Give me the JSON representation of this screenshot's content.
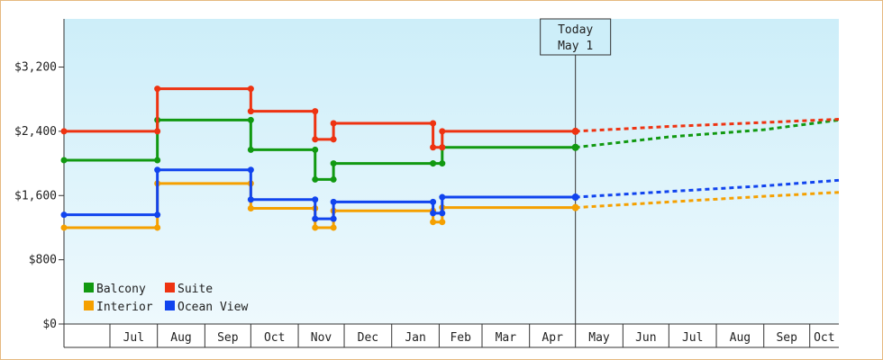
{
  "chart_data": {
    "type": "line",
    "title": "",
    "xlabel": "",
    "ylabel": "",
    "y_ticks": [
      "$0",
      "$800",
      "$1,600",
      "$2,400",
      "$3,200"
    ],
    "y_tick_values": [
      0,
      800,
      1600,
      2400,
      3200
    ],
    "ylim": [
      0,
      3800
    ],
    "x_start": "2025-06-01",
    "x_end": "2026-10-20",
    "months": [
      {
        "label": "Jul",
        "start": "2025-07-01"
      },
      {
        "label": "Aug",
        "start": "2025-08-01"
      },
      {
        "label": "Sep",
        "start": "2025-09-01"
      },
      {
        "label": "Oct",
        "start": "2025-10-01"
      },
      {
        "label": "Nov",
        "start": "2025-11-01"
      },
      {
        "label": "Dec",
        "start": "2025-12-01"
      },
      {
        "label": "Jan",
        "start": "2026-01-01"
      },
      {
        "label": "Feb",
        "start": "2026-02-01"
      },
      {
        "label": "Mar",
        "start": "2026-03-01"
      },
      {
        "label": "Apr",
        "start": "2026-04-01"
      },
      {
        "label": "May",
        "start": "2026-05-01"
      },
      {
        "label": "Jun",
        "start": "2026-06-01"
      },
      {
        "label": "Jul",
        "start": "2026-07-01"
      },
      {
        "label": "Aug",
        "start": "2026-08-01"
      },
      {
        "label": "Sep",
        "start": "2026-09-01"
      },
      {
        "label": "Oct",
        "start": "2026-10-01"
      }
    ],
    "today": {
      "line1": "Today",
      "line2": "May 1",
      "date": "2026-05-01"
    },
    "grid": false,
    "legend_position": "bottom-left",
    "background": [
      "#cdeef9",
      "#eef9fd"
    ],
    "series": [
      {
        "name": "Balcony",
        "color": "#119911",
        "points": [
          [
            "2025-06-01",
            2040
          ],
          [
            "2025-08-01",
            2040
          ],
          [
            "2025-08-01",
            2540
          ],
          [
            "2025-10-01",
            2540
          ],
          [
            "2025-10-01",
            2170
          ],
          [
            "2025-11-12",
            2170
          ],
          [
            "2025-11-12",
            1800
          ],
          [
            "2025-11-24",
            1800
          ],
          [
            "2025-11-24",
            2000
          ],
          [
            "2026-01-28",
            2000
          ],
          [
            "2026-01-28",
            2000
          ],
          [
            "2026-02-03",
            2000
          ],
          [
            "2026-02-03",
            2200
          ],
          [
            "2026-05-01",
            2200
          ]
        ],
        "projection": [
          [
            "2026-05-01",
            2200
          ],
          [
            "2026-07-01",
            2330
          ],
          [
            "2026-09-01",
            2420
          ],
          [
            "2026-10-20",
            2540
          ]
        ]
      },
      {
        "name": "Suite",
        "color": "#ee3311",
        "points": [
          [
            "2025-06-01",
            2400
          ],
          [
            "2025-08-01",
            2400
          ],
          [
            "2025-08-01",
            2930
          ],
          [
            "2025-10-01",
            2930
          ],
          [
            "2025-10-01",
            2650
          ],
          [
            "2025-11-12",
            2650
          ],
          [
            "2025-11-12",
            2300
          ],
          [
            "2025-11-24",
            2300
          ],
          [
            "2025-11-24",
            2500
          ],
          [
            "2026-01-28",
            2500
          ],
          [
            "2026-01-28",
            2200
          ],
          [
            "2026-02-03",
            2200
          ],
          [
            "2026-02-03",
            2400
          ],
          [
            "2026-05-01",
            2400
          ]
        ],
        "projection": [
          [
            "2026-05-01",
            2400
          ],
          [
            "2026-07-01",
            2460
          ],
          [
            "2026-09-01",
            2510
          ],
          [
            "2026-10-20",
            2550
          ]
        ]
      },
      {
        "name": "Interior",
        "color": "#f5a000",
        "points": [
          [
            "2025-06-01",
            1200
          ],
          [
            "2025-08-01",
            1200
          ],
          [
            "2025-08-01",
            1750
          ],
          [
            "2025-10-01",
            1750
          ],
          [
            "2025-10-01",
            1440
          ],
          [
            "2025-11-12",
            1440
          ],
          [
            "2025-11-12",
            1200
          ],
          [
            "2025-11-24",
            1200
          ],
          [
            "2025-11-24",
            1410
          ],
          [
            "2026-01-28",
            1410
          ],
          [
            "2026-01-28",
            1270
          ],
          [
            "2026-02-03",
            1270
          ],
          [
            "2026-02-03",
            1450
          ],
          [
            "2026-05-01",
            1450
          ]
        ],
        "projection": [
          [
            "2026-05-01",
            1450
          ],
          [
            "2026-07-01",
            1520
          ],
          [
            "2026-09-01",
            1590
          ],
          [
            "2026-10-20",
            1640
          ]
        ]
      },
      {
        "name": "Ocean View",
        "color": "#1144ee",
        "points": [
          [
            "2025-06-01",
            1360
          ],
          [
            "2025-08-01",
            1360
          ],
          [
            "2025-08-01",
            1920
          ],
          [
            "2025-10-01",
            1920
          ],
          [
            "2025-10-01",
            1550
          ],
          [
            "2025-11-12",
            1550
          ],
          [
            "2025-11-12",
            1310
          ],
          [
            "2025-11-24",
            1310
          ],
          [
            "2025-11-24",
            1520
          ],
          [
            "2026-01-28",
            1520
          ],
          [
            "2026-01-28",
            1380
          ],
          [
            "2026-02-03",
            1380
          ],
          [
            "2026-02-03",
            1580
          ],
          [
            "2026-05-01",
            1580
          ]
        ],
        "projection": [
          [
            "2026-05-01",
            1580
          ],
          [
            "2026-07-01",
            1650
          ],
          [
            "2026-09-01",
            1720
          ],
          [
            "2026-10-20",
            1790
          ]
        ]
      }
    ]
  }
}
